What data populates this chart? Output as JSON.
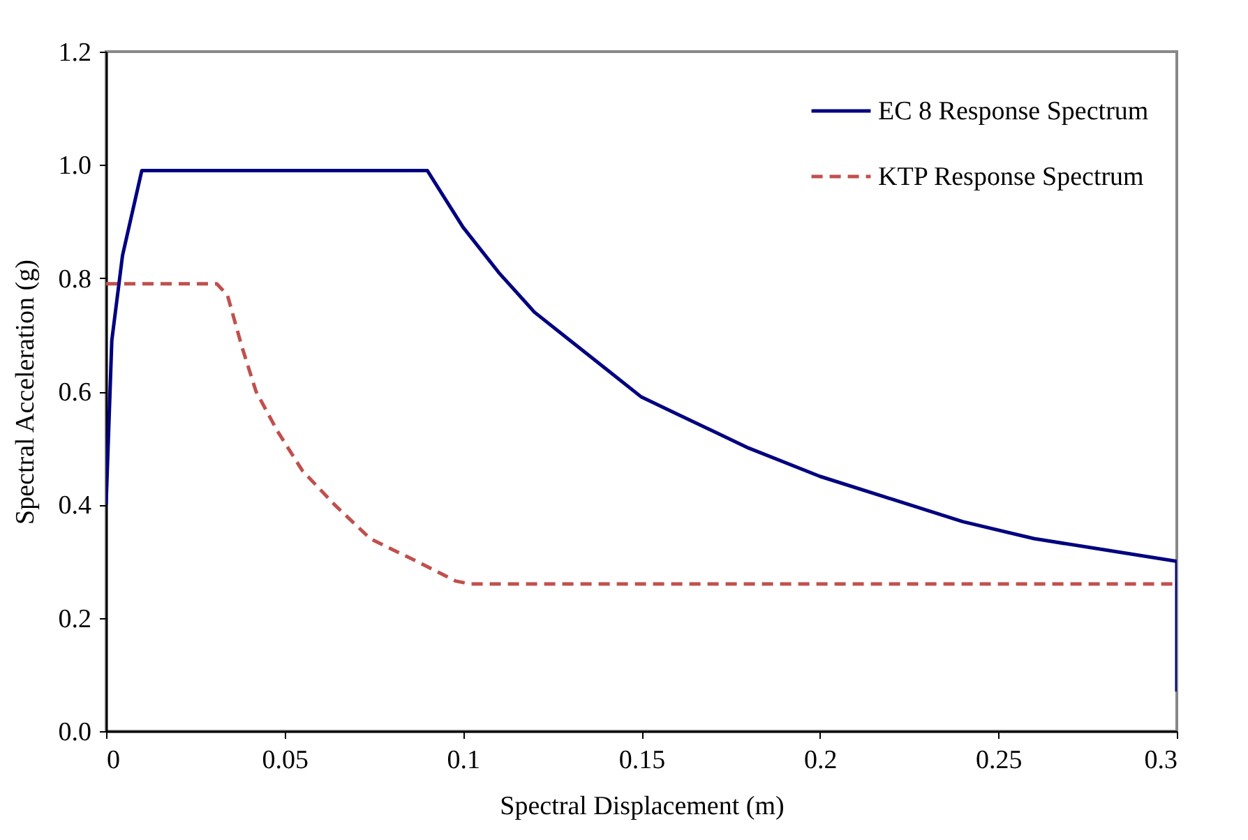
{
  "chart_data": {
    "type": "line",
    "xlabel": "Spectral Displacement (m)",
    "ylabel": "Spectral Acceleration (g)",
    "xlim": [
      0,
      0.3
    ],
    "xticks": [
      0,
      0.05,
      0.1,
      0.15,
      0.2,
      0.25,
      0.3
    ],
    "ylim": [
      0,
      1.2
    ],
    "yticks": [
      {
        "value": 0,
        "label": "0.0"
      },
      0.2,
      0.4,
      0.6,
      0.8,
      {
        "value": 1,
        "label": "1.0"
      },
      1.2
    ],
    "grid": false,
    "legend": "top right",
    "series": [
      {
        "name": "EC 8 Response Spectrum",
        "color": "#000080",
        "line_style": "solid",
        "x": [
          0,
          0.0016,
          0.0046,
          0.01,
          0.09,
          0.1,
          0.11,
          0.12,
          0.13,
          0.14,
          0.15,
          0.16,
          0.18,
          0.2,
          0.22,
          0.24,
          0.26,
          0.28,
          0.3,
          0.3
        ],
        "values": [
          0.4,
          0.69,
          0.84,
          0.99,
          0.99,
          0.89,
          0.81,
          0.74,
          0.69,
          0.64,
          0.59,
          0.56,
          0.5,
          0.45,
          0.41,
          0.37,
          0.34,
          0.32,
          0.3,
          0.07
        ]
      },
      {
        "name": "KTP Response Spectrum",
        "color": "#c0504d",
        "line_style": "dashed",
        "x": [
          0,
          0.029,
          0.031,
          0.034,
          0.038,
          0.042,
          0.048,
          0.055,
          0.064,
          0.074,
          0.087,
          0.098,
          0.102,
          0.3
        ],
        "values": [
          0.79,
          0.79,
          0.79,
          0.77,
          0.68,
          0.6,
          0.53,
          0.46,
          0.4,
          0.34,
          0.3,
          0.265,
          0.26,
          0.26
        ]
      }
    ]
  }
}
